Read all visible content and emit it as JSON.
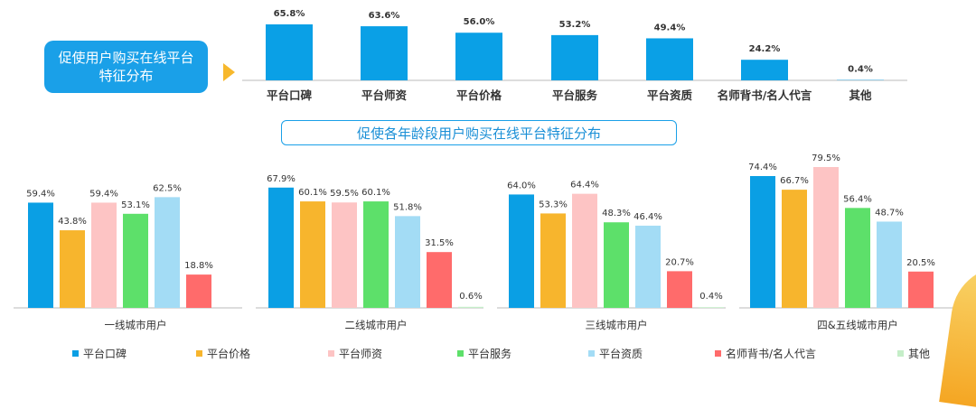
{
  "top_callout": {
    "line1": "促使用户购买在线平台",
    "line2": "特征分布"
  },
  "sub_title": "促使各年龄段用户购买在线平台特征分布",
  "colors": {
    "top_bar": "#0aa0e6",
    "series": [
      "#0a9fe4",
      "#f7b52d",
      "#fdc4c4",
      "#5de06a",
      "#a3dcf5",
      "#ff6b6b",
      "#c5eec8"
    ]
  },
  "chart_data": [
    {
      "type": "bar",
      "categories": [
        "平台口碑",
        "平台师资",
        "平台价格",
        "平台服务",
        "平台资质",
        "名师背书/名人代言",
        "其他"
      ],
      "values": [
        65.8,
        63.6,
        56.0,
        53.2,
        49.4,
        24.2,
        0.4
      ],
      "value_labels": [
        "65.8%",
        "63.6%",
        "56.0%",
        "53.2%",
        "49.4%",
        "24.2%",
        "0.4%"
      ],
      "ylim": [
        0,
        70
      ]
    },
    {
      "type": "bar",
      "categories": [
        "一线城市用户",
        "二线城市用户",
        "三线城市用户",
        "四&五线城市用户"
      ],
      "series": [
        {
          "name": "平台口碑",
          "values": [
            59.4,
            67.9,
            64.0,
            74.4
          ]
        },
        {
          "name": "平台价格",
          "values": [
            43.8,
            60.1,
            53.3,
            66.7
          ]
        },
        {
          "name": "平台师资",
          "values": [
            59.4,
            59.5,
            64.4,
            79.5
          ]
        },
        {
          "name": "平台服务",
          "values": [
            53.1,
            60.1,
            48.3,
            56.4
          ]
        },
        {
          "name": "平台资质",
          "values": [
            62.5,
            51.8,
            46.4,
            48.7
          ]
        },
        {
          "name": "名师背书/名人代言",
          "values": [
            18.8,
            31.5,
            20.7,
            20.5
          ]
        },
        {
          "name": "其他",
          "values": [
            null,
            0.6,
            0.4,
            null
          ]
        }
      ],
      "value_labels": [
        [
          "59.4%",
          "67.9%",
          "64.0%",
          "74.4%"
        ],
        [
          "43.8%",
          "60.1%",
          "53.3%",
          "66.7%"
        ],
        [
          "59.4%",
          "59.5%",
          "64.4%",
          "79.5%"
        ],
        [
          "53.1%",
          "60.1%",
          "48.3%",
          "56.4%"
        ],
        [
          "62.5%",
          "51.8%",
          "46.4%",
          "48.7%"
        ],
        [
          "18.8%",
          "31.5%",
          "20.7%",
          "20.5%"
        ],
        [
          "",
          "0.6%",
          "0.4%",
          ""
        ]
      ],
      "legend": "bottom",
      "ylim": [
        0,
        85
      ]
    }
  ]
}
